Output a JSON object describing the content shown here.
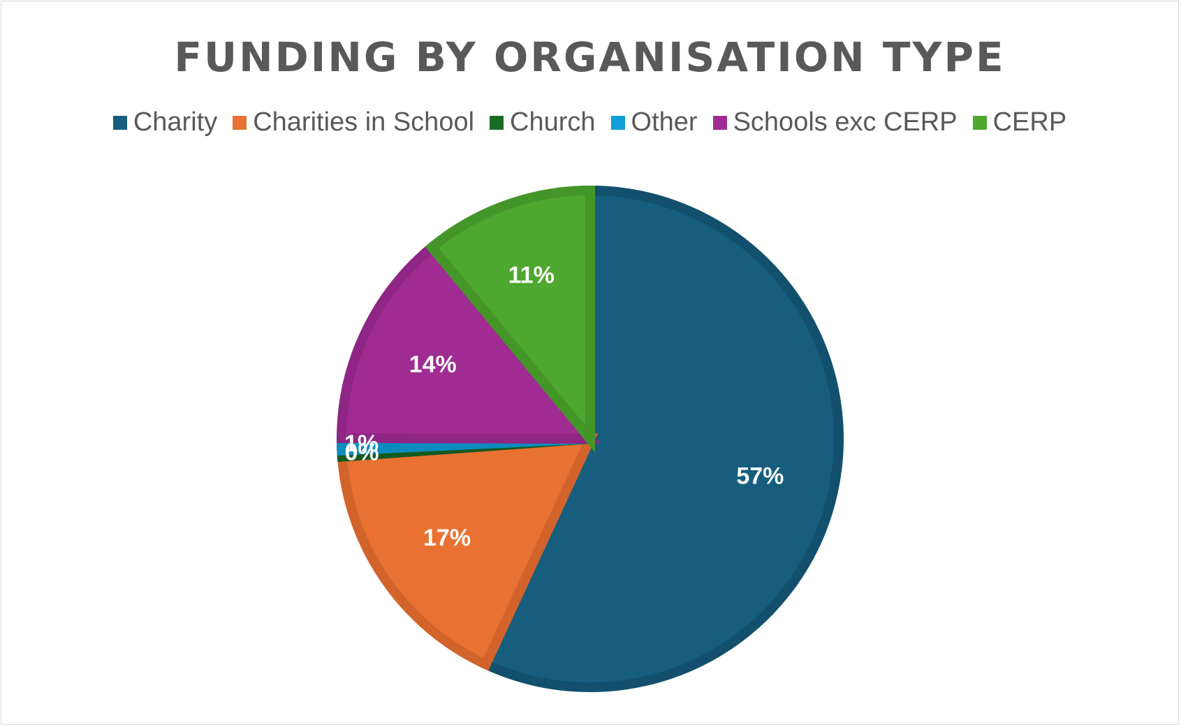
{
  "chart_data": {
    "type": "pie",
    "title": "FUNDING BY ORGANISATION TYPE",
    "legend_position": "top",
    "start_angle_deg": 0,
    "direction": "clockwise",
    "slices": [
      {
        "name": "Charity",
        "value": 57,
        "label": "57%",
        "color": "#175E7E",
        "border": "#12506D"
      },
      {
        "name": "Charities in School",
        "value": 17,
        "label": "17%",
        "color": "#E97132",
        "border": "#D2642B"
      },
      {
        "name": "Church",
        "value": 0.4,
        "label": "0%",
        "color": "#196B24",
        "border": "#145A1E"
      },
      {
        "name": "Other",
        "value": 0.8,
        "label": "1%",
        "color": "#0F9ED5",
        "border": "#0C8CBF"
      },
      {
        "name": "Schools exc CERP",
        "value": 14,
        "label": "14%",
        "color": "#A02B93",
        "border": "#8F2584"
      },
      {
        "name": "CERP",
        "value": 11,
        "label": "11%",
        "color": "#4EA72E",
        "border": "#449629"
      }
    ]
  }
}
